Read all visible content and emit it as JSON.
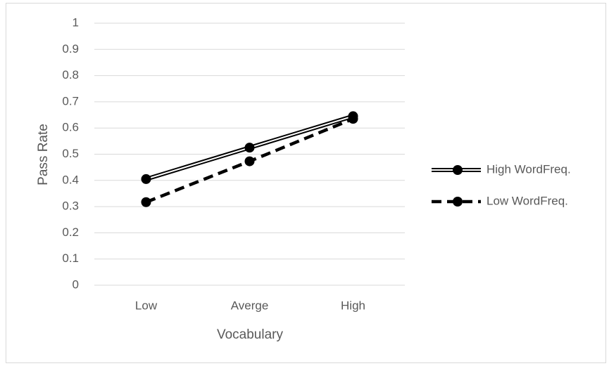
{
  "chart_data": {
    "type": "line",
    "x_label": "Vocabulary",
    "y_label": "Pass Rate",
    "categories": [
      "Low",
      "Averge",
      "High"
    ],
    "series": [
      {
        "name": "High WordFreq.",
        "color": "#000000",
        "line_style": "double",
        "values": [
          0.405,
          0.525,
          0.645
        ]
      },
      {
        "name": "Low WordFreq.",
        "color": "#000000",
        "line_style": "dashed",
        "values": [
          0.317,
          0.473,
          0.635
        ]
      }
    ],
    "ylim": [
      0,
      1
    ],
    "yticks": [
      0,
      0.1,
      0.2,
      0.3,
      0.4,
      0.5,
      0.6,
      0.7,
      0.8,
      0.9,
      1
    ],
    "grid": true,
    "legend": "right"
  }
}
